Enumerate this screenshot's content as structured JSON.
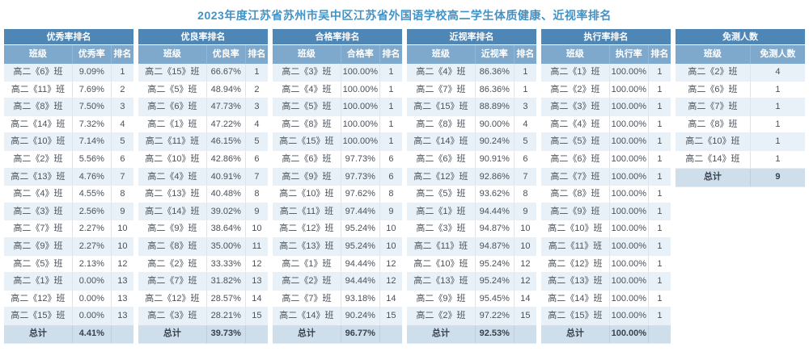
{
  "page": {
    "title": "2023年度江苏省苏州市吴中区江苏省外国语学校高二学生体质健康、近视率排名"
  },
  "colors": {
    "title_text": "#4292c6",
    "table_title_bg": "#4e86b6",
    "column_header_bg": "#7ea9cc",
    "row_tint_bg": "#e9f1f8",
    "total_row_bg": "#cfdeeb"
  },
  "tables": [
    {
      "id": "excellent-rate-ranking",
      "title": "优秀率排名",
      "columns": [
        "班级",
        "优秀率",
        "排名"
      ],
      "rows": [
        [
          "高二《6》班",
          "9.09%",
          "1"
        ],
        [
          "高二《11》班",
          "7.69%",
          "2"
        ],
        [
          "高二《8》班",
          "7.50%",
          "3"
        ],
        [
          "高二《14》班",
          "7.32%",
          "4"
        ],
        [
          "高二《10》班",
          "7.14%",
          "5"
        ],
        [
          "高二《2》班",
          "5.56%",
          "6"
        ],
        [
          "高二《13》班",
          "4.76%",
          "7"
        ],
        [
          "高二《4》班",
          "4.55%",
          "8"
        ],
        [
          "高二《3》班",
          "2.56%",
          "9"
        ],
        [
          "高二《7》班",
          "2.27%",
          "10"
        ],
        [
          "高二《9》班",
          "2.27%",
          "10"
        ],
        [
          "高二《5》班",
          "2.13%",
          "12"
        ],
        [
          "高二《1》班",
          "0.00%",
          "13"
        ],
        [
          "高二《12》班",
          "0.00%",
          "13"
        ],
        [
          "高二《15》班",
          "0.00%",
          "13"
        ]
      ],
      "total": [
        "总计",
        "4.41%",
        ""
      ]
    },
    {
      "id": "good-rate-ranking",
      "title": "优良率排名",
      "columns": [
        "班级",
        "优良率",
        "排名"
      ],
      "rows": [
        [
          "高二《15》班",
          "66.67%",
          "1"
        ],
        [
          "高二《5》班",
          "48.94%",
          "2"
        ],
        [
          "高二《6》班",
          "47.73%",
          "3"
        ],
        [
          "高二《1》班",
          "47.22%",
          "4"
        ],
        [
          "高二《11》班",
          "46.15%",
          "5"
        ],
        [
          "高二《10》班",
          "42.86%",
          "6"
        ],
        [
          "高二《4》班",
          "40.91%",
          "7"
        ],
        [
          "高二《13》班",
          "40.48%",
          "8"
        ],
        [
          "高二《14》班",
          "39.02%",
          "9"
        ],
        [
          "高二《9》班",
          "38.64%",
          "10"
        ],
        [
          "高二《8》班",
          "35.00%",
          "11"
        ],
        [
          "高二《2》班",
          "33.33%",
          "12"
        ],
        [
          "高二《7》班",
          "31.82%",
          "13"
        ],
        [
          "高二《12》班",
          "28.57%",
          "14"
        ],
        [
          "高二《3》班",
          "28.21%",
          "15"
        ]
      ],
      "total": [
        "总计",
        "39.73%",
        ""
      ]
    },
    {
      "id": "pass-rate-ranking",
      "title": "合格率排名",
      "columns": [
        "班级",
        "合格率",
        "排名"
      ],
      "rows": [
        [
          "高二《3》班",
          "100.00%",
          "1"
        ],
        [
          "高二《4》班",
          "100.00%",
          "1"
        ],
        [
          "高二《5》班",
          "100.00%",
          "1"
        ],
        [
          "高二《8》班",
          "100.00%",
          "1"
        ],
        [
          "高二《15》班",
          "100.00%",
          "1"
        ],
        [
          "高二《6》班",
          "97.73%",
          "6"
        ],
        [
          "高二《9》班",
          "97.73%",
          "6"
        ],
        [
          "高二《10》班",
          "97.62%",
          "8"
        ],
        [
          "高二《11》班",
          "97.44%",
          "9"
        ],
        [
          "高二《12》班",
          "95.24%",
          "10"
        ],
        [
          "高二《13》班",
          "95.24%",
          "10"
        ],
        [
          "高二《1》班",
          "94.44%",
          "12"
        ],
        [
          "高二《2》班",
          "94.44%",
          "12"
        ],
        [
          "高二《7》班",
          "93.18%",
          "14"
        ],
        [
          "高二《14》班",
          "90.24%",
          "15"
        ]
      ],
      "total": [
        "总计",
        "96.77%",
        ""
      ]
    },
    {
      "id": "myopia-rate-ranking",
      "title": "近视率排名",
      "columns": [
        "班级",
        "近视率",
        "排名"
      ],
      "rows": [
        [
          "高二《4》班",
          "86.36%",
          "1"
        ],
        [
          "高二《7》班",
          "86.36%",
          "1"
        ],
        [
          "高二《15》班",
          "88.89%",
          "3"
        ],
        [
          "高二《8》班",
          "90.00%",
          "4"
        ],
        [
          "高二《14》班",
          "90.24%",
          "5"
        ],
        [
          "高二《6》班",
          "90.91%",
          "6"
        ],
        [
          "高二《12》班",
          "92.86%",
          "7"
        ],
        [
          "高二《5》班",
          "93.62%",
          "8"
        ],
        [
          "高二《1》班",
          "94.44%",
          "9"
        ],
        [
          "高二《3》班",
          "94.87%",
          "10"
        ],
        [
          "高二《11》班",
          "94.87%",
          "10"
        ],
        [
          "高二《10》班",
          "95.24%",
          "12"
        ],
        [
          "高二《13》班",
          "95.24%",
          "12"
        ],
        [
          "高二《9》班",
          "95.45%",
          "14"
        ],
        [
          "高二《2》班",
          "97.22%",
          "15"
        ]
      ],
      "total": [
        "总计",
        "92.53%",
        ""
      ]
    },
    {
      "id": "execution-rate-ranking",
      "title": "执行率排名",
      "columns": [
        "班级",
        "执行率",
        "排名"
      ],
      "rows": [
        [
          "高二《1》班",
          "100.00%",
          "1"
        ],
        [
          "高二《2》班",
          "100.00%",
          "1"
        ],
        [
          "高二《3》班",
          "100.00%",
          "1"
        ],
        [
          "高二《4》班",
          "100.00%",
          "1"
        ],
        [
          "高二《5》班",
          "100.00%",
          "1"
        ],
        [
          "高二《6》班",
          "100.00%",
          "1"
        ],
        [
          "高二《7》班",
          "100.00%",
          "1"
        ],
        [
          "高二《8》班",
          "100.00%",
          "1"
        ],
        [
          "高二《9》班",
          "100.00%",
          "1"
        ],
        [
          "高二《10》班",
          "100.00%",
          "1"
        ],
        [
          "高二《11》班",
          "100.00%",
          "1"
        ],
        [
          "高二《12》班",
          "100.00%",
          "1"
        ],
        [
          "高二《13》班",
          "100.00%",
          "1"
        ],
        [
          "高二《14》班",
          "100.00%",
          "1"
        ],
        [
          "高二《15》班",
          "100.00%",
          "1"
        ]
      ],
      "total": [
        "总计",
        "100.00%",
        ""
      ]
    },
    {
      "id": "exempt-count",
      "title": "免测人数",
      "columns": [
        "班级",
        "免测人数"
      ],
      "rows": [
        [
          "高二《2》班",
          "4"
        ],
        [
          "高二《6》班",
          "1"
        ],
        [
          "高二《7》班",
          "1"
        ],
        [
          "高二《8》班",
          "1"
        ],
        [
          "高二《10》班",
          "1"
        ],
        [
          "高二《14》班",
          "1"
        ]
      ],
      "total": [
        "总计",
        "9"
      ]
    }
  ]
}
